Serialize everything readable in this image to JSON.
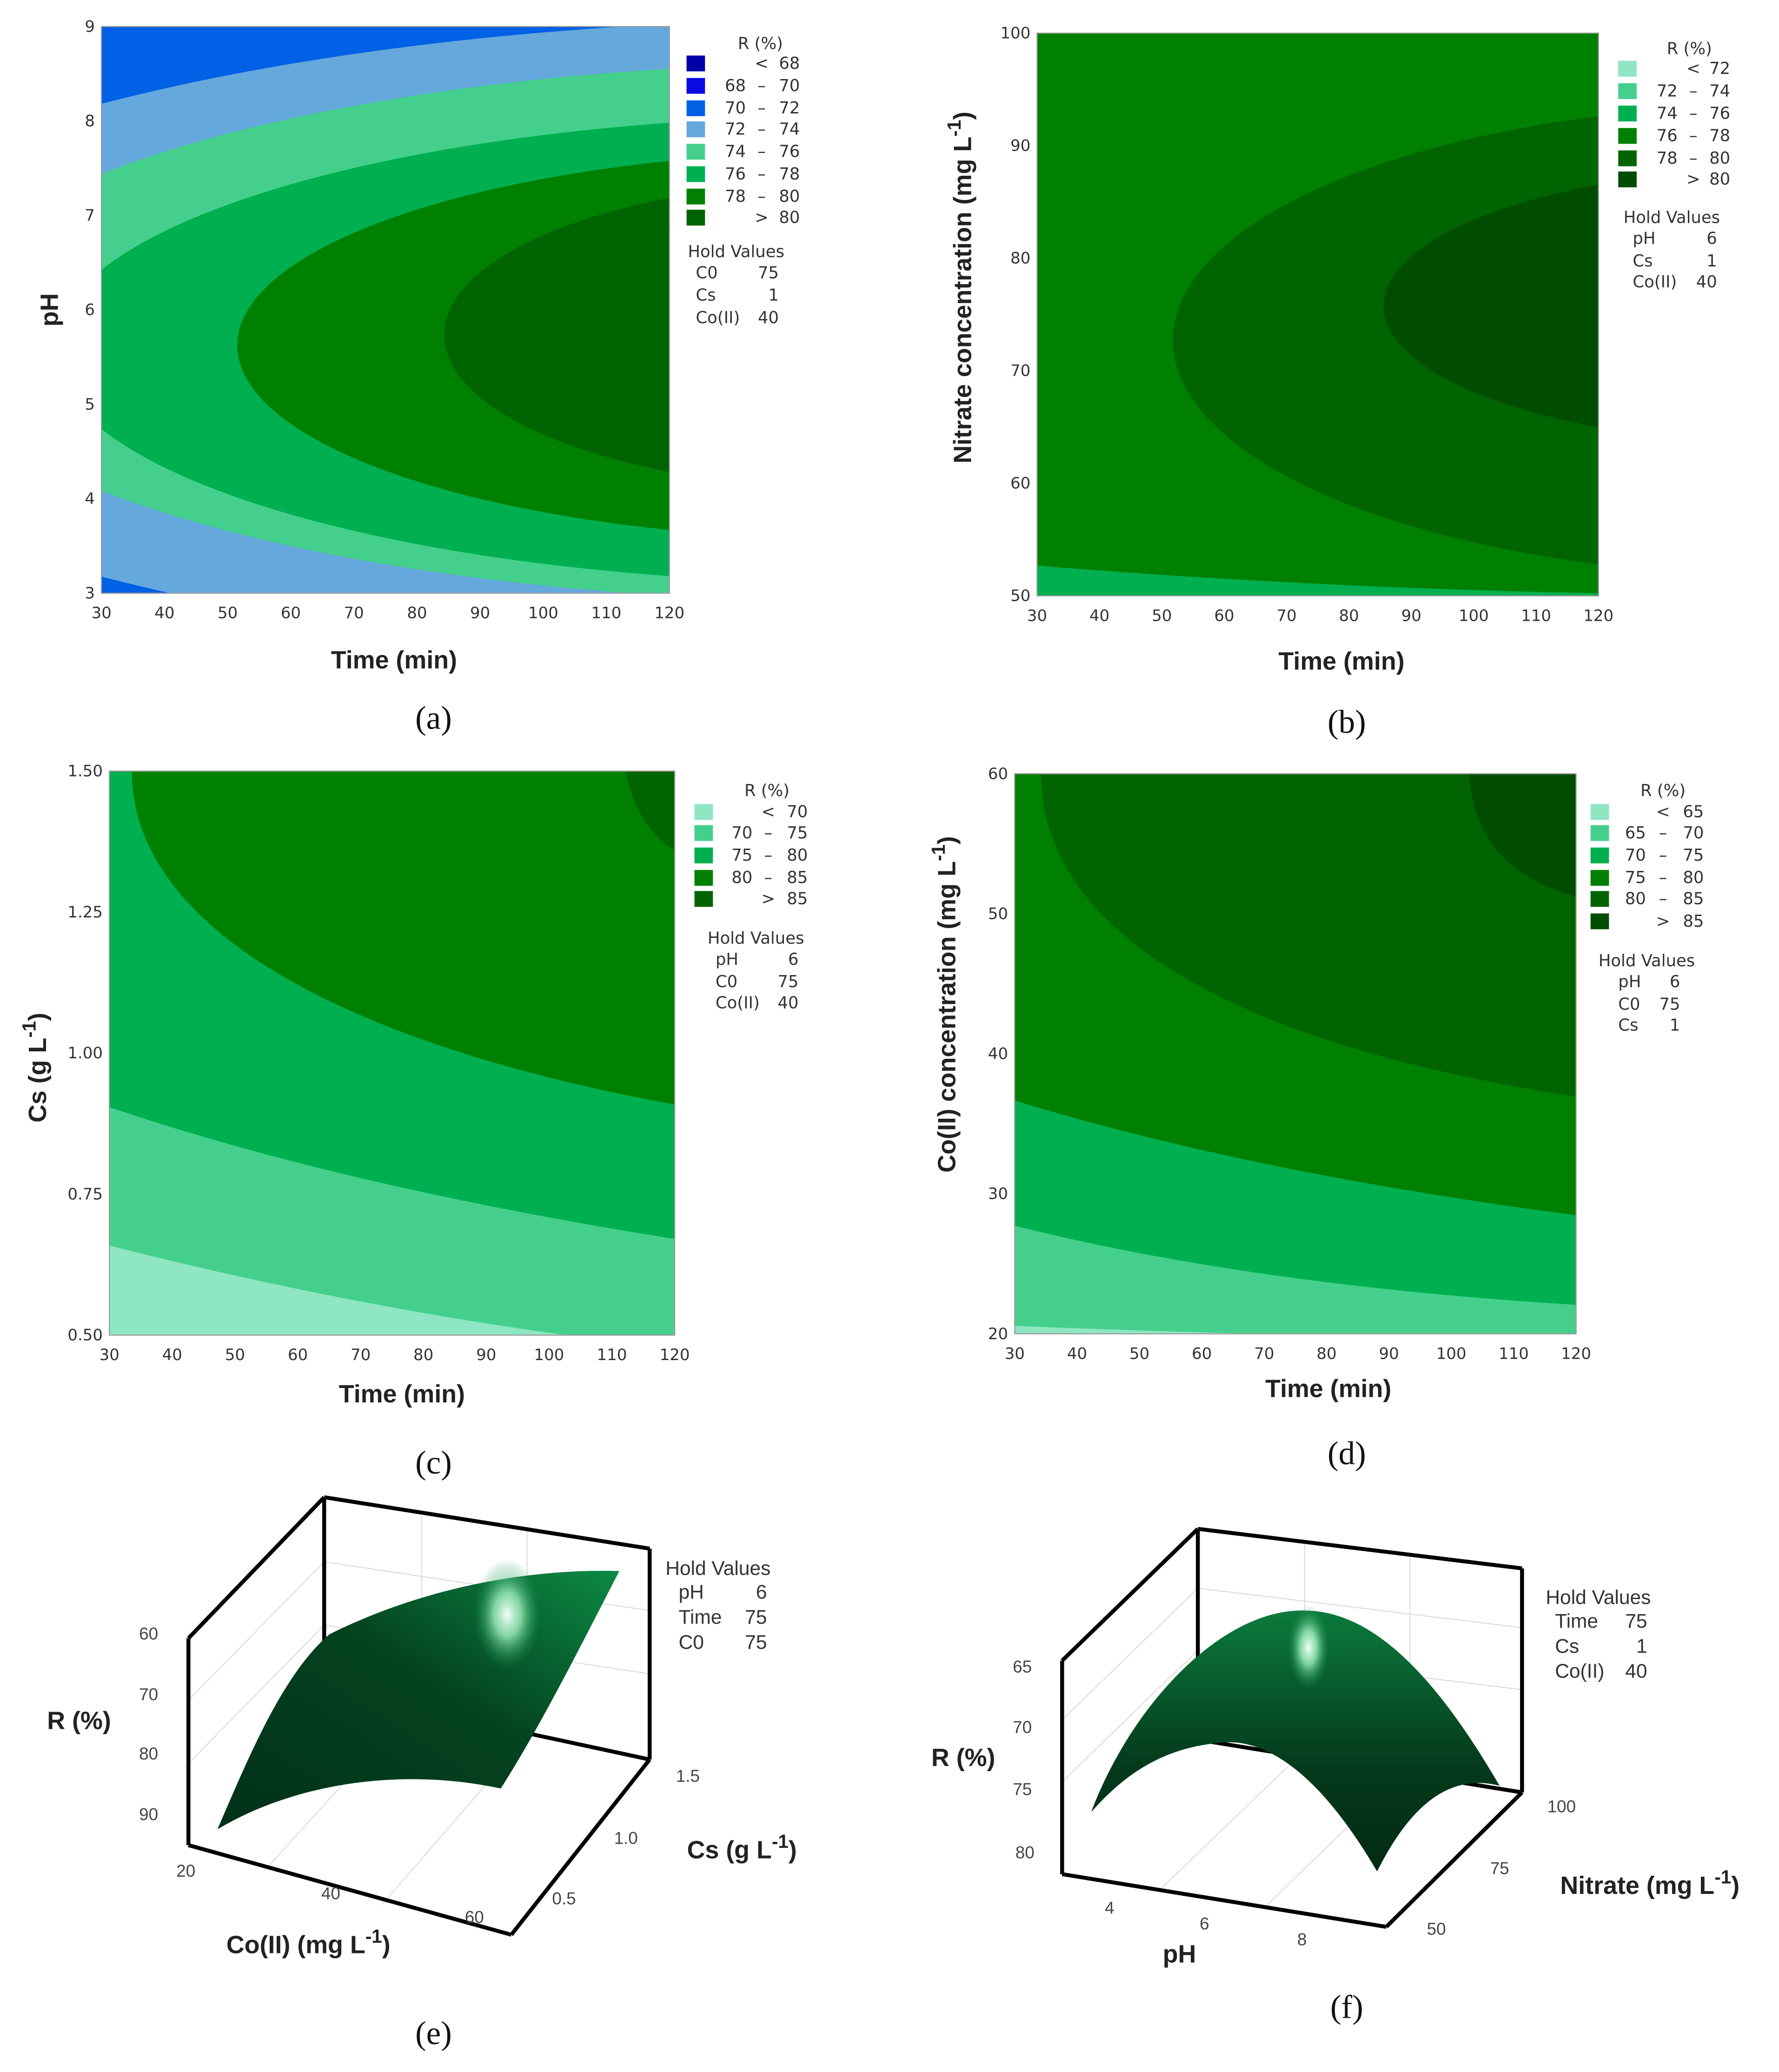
{
  "chart_data": [
    {
      "panel": "a",
      "type": "contour",
      "caption": "(a)",
      "xlabel": "Time (min)",
      "ylabel": {
        "main": "pH",
        "sup": "",
        "end": ""
      },
      "xlim": [
        30,
        120
      ],
      "ylim": [
        3,
        9
      ],
      "x_ticks": [
        "30",
        "40",
        "50",
        "60",
        "70",
        "80",
        "90",
        "100",
        "110",
        "120"
      ],
      "y_ticks": [
        "3",
        "4",
        "5",
        "6",
        "7",
        "8",
        "9"
      ],
      "legend": {
        "title": "R (%)",
        "position": "right",
        "levels": [
          {
            "lo": "",
            "sep": "<",
            "hi": "68",
            "color": "#0000a8"
          },
          {
            "lo": "68",
            "sep": "–",
            "hi": "70",
            "color": "#0a0ae6"
          },
          {
            "lo": "70",
            "sep": "–",
            "hi": "72",
            "color": "#0060e6"
          },
          {
            "lo": "72",
            "sep": "–",
            "hi": "74",
            "color": "#64a8dc"
          },
          {
            "lo": "74",
            "sep": "–",
            "hi": "76",
            "color": "#44d08c"
          },
          {
            "lo": "76",
            "sep": "–",
            "hi": "78",
            "color": "#00b050"
          },
          {
            "lo": "78",
            "sep": "–",
            "hi": "80",
            "color": "#008000"
          },
          {
            "lo": "",
            "sep": ">",
            "hi": "80",
            "color": "#006400"
          }
        ]
      },
      "hold_values": {
        "title": "Hold Values",
        "items": [
          {
            "name": "C0",
            "value": "75"
          },
          {
            "name": "Cs",
            "value": "1"
          },
          {
            "name": "Co(II)",
            "value": "40"
          }
        ]
      }
    },
    {
      "panel": "b",
      "type": "contour",
      "caption": "(b)",
      "xlabel": "Time (min)",
      "ylabel": {
        "main": "Nitrate concentration (mg L",
        "sup": "-1",
        "end": ")"
      },
      "xlim": [
        30,
        120
      ],
      "ylim": [
        50,
        100
      ],
      "x_ticks": [
        "30",
        "40",
        "50",
        "60",
        "70",
        "80",
        "90",
        "100",
        "110",
        "120"
      ],
      "y_ticks": [
        "50",
        "60",
        "70",
        "80",
        "90",
        "100"
      ],
      "legend": {
        "title": "R (%)",
        "position": "right",
        "levels": [
          {
            "lo": "",
            "sep": "<",
            "hi": "72",
            "color": "#8ee6c2"
          },
          {
            "lo": "72",
            "sep": "–",
            "hi": "74",
            "color": "#44d08c"
          },
          {
            "lo": "74",
            "sep": "–",
            "hi": "76",
            "color": "#00b050"
          },
          {
            "lo": "76",
            "sep": "–",
            "hi": "78",
            "color": "#008000"
          },
          {
            "lo": "78",
            "sep": "–",
            "hi": "80",
            "color": "#006400"
          },
          {
            "lo": "",
            "sep": ">",
            "hi": "80",
            "color": "#004d00"
          }
        ]
      },
      "hold_values": {
        "title": "Hold Values",
        "items": [
          {
            "name": "pH",
            "value": "6"
          },
          {
            "name": "Cs",
            "value": "1"
          },
          {
            "name": "Co(II)",
            "value": "40"
          }
        ]
      }
    },
    {
      "panel": "c",
      "type": "contour",
      "caption": "(c)",
      "xlabel": "Time (min)",
      "ylabel": {
        "main": "Cs (g L",
        "sup": "-1",
        "end": ")"
      },
      "xlim": [
        30,
        120
      ],
      "ylim": [
        0.5,
        1.5
      ],
      "x_ticks": [
        "30",
        "40",
        "50",
        "60",
        "70",
        "80",
        "90",
        "100",
        "110",
        "120"
      ],
      "y_ticks": [
        "0.50",
        "0.75",
        "1.00",
        "1.25",
        "1.50"
      ],
      "legend": {
        "title": "R (%)",
        "position": "right",
        "levels": [
          {
            "lo": "",
            "sep": "<",
            "hi": "70",
            "color": "#8ee6c2"
          },
          {
            "lo": "70",
            "sep": "–",
            "hi": "75",
            "color": "#44d08c"
          },
          {
            "lo": "75",
            "sep": "–",
            "hi": "80",
            "color": "#00b050"
          },
          {
            "lo": "80",
            "sep": "–",
            "hi": "85",
            "color": "#008000"
          },
          {
            "lo": "",
            "sep": ">",
            "hi": "85",
            "color": "#006400"
          }
        ]
      },
      "hold_values": {
        "title": "Hold Values",
        "items": [
          {
            "name": "pH",
            "value": "6"
          },
          {
            "name": "C0",
            "value": "75"
          },
          {
            "name": "Co(II)",
            "value": "40"
          }
        ]
      }
    },
    {
      "panel": "d",
      "type": "contour",
      "caption": "(d)",
      "xlabel": "Time (min)",
      "ylabel": {
        "main": "Co(II) concentration (mg L",
        "sup": "-1",
        "end": ")"
      },
      "xlim": [
        30,
        120
      ],
      "ylim": [
        20,
        60
      ],
      "x_ticks": [
        "30",
        "40",
        "50",
        "60",
        "70",
        "80",
        "90",
        "100",
        "110",
        "120"
      ],
      "y_ticks": [
        "20",
        "30",
        "40",
        "50",
        "60"
      ],
      "legend": {
        "title": "R (%)",
        "position": "right",
        "levels": [
          {
            "lo": "",
            "sep": "<",
            "hi": "65",
            "color": "#8ee6c2"
          },
          {
            "lo": "65",
            "sep": "–",
            "hi": "70",
            "color": "#44d08c"
          },
          {
            "lo": "70",
            "sep": "–",
            "hi": "75",
            "color": "#00b050"
          },
          {
            "lo": "75",
            "sep": "–",
            "hi": "80",
            "color": "#008000"
          },
          {
            "lo": "80",
            "sep": "–",
            "hi": "85",
            "color": "#006400"
          },
          {
            "lo": "",
            "sep": ">",
            "hi": "85",
            "color": "#004d00"
          }
        ]
      },
      "hold_values": {
        "title": "Hold Values",
        "items": [
          {
            "name": "pH",
            "value": "6"
          },
          {
            "name": "C0",
            "value": "75"
          },
          {
            "name": "Cs",
            "value": "1"
          }
        ]
      }
    },
    {
      "panel": "e",
      "type": "surface",
      "caption": "(e)",
      "zlabel": "R (%)",
      "z_ticks": [
        "60",
        "70",
        "80",
        "90"
      ],
      "xlabel": {
        "main": "Co(II) (mg L",
        "sup": "-1",
        "end": ")"
      },
      "x_ticks": [
        "20",
        "40",
        "60"
      ],
      "ylabel": {
        "main": "Cs (g L",
        "sup": "-1",
        "end": ")"
      },
      "y_ticks": [
        "0.5",
        "1.0",
        "1.5"
      ],
      "surface_color": "#0a6b35",
      "hold_values": {
        "title": "Hold Values",
        "items": [
          {
            "name": "pH",
            "value": "6"
          },
          {
            "name": "Time",
            "value": "75"
          },
          {
            "name": "C0",
            "value": "75"
          }
        ]
      }
    },
    {
      "panel": "f",
      "type": "surface",
      "caption": "(f)",
      "zlabel": "R (%)",
      "z_ticks": [
        "65",
        "70",
        "75",
        "80"
      ],
      "xlabel": {
        "main": "pH",
        "sup": "",
        "end": ""
      },
      "x_ticks": [
        "4",
        "6",
        "8"
      ],
      "ylabel": {
        "main": "Nitrate (mg L",
        "sup": "-1",
        "end": ")"
      },
      "y_ticks": [
        "50",
        "75",
        "100"
      ],
      "surface_color": "#0a6b35",
      "hold_values": {
        "title": "Hold Values",
        "items": [
          {
            "name": "Time",
            "value": "75"
          },
          {
            "name": "Cs",
            "value": "1"
          },
          {
            "name": "Co(II)",
            "value": "40"
          }
        ]
      }
    }
  ]
}
